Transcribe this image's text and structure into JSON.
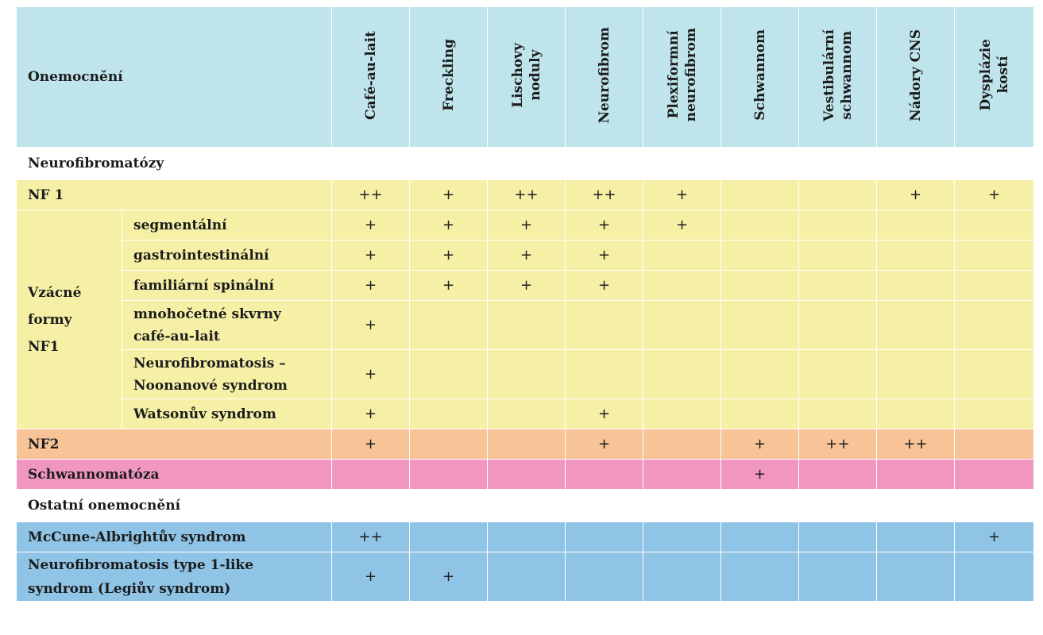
{
  "header": {
    "first": "Onemocnění",
    "columns": [
      [
        "Café-au-lait"
      ],
      [
        "Freckling"
      ],
      [
        "Lischovy",
        "noduly"
      ],
      [
        "Neurofibrom"
      ],
      [
        "Plexiformní",
        "neurofibrom"
      ],
      [
        "Schwannom"
      ],
      [
        "Vestibulární",
        "schwannom"
      ],
      [
        "Nádory CNS"
      ],
      [
        "Dysplázie",
        "kostí"
      ]
    ]
  },
  "sections": {
    "neurofibromatozy": "Neurofibromatózy",
    "ostatni": "Ostatní onemocnění"
  },
  "group_label": [
    "Vzácné",
    "formy",
    "NF1"
  ],
  "rows": [
    {
      "label": "NF 1",
      "color": "#f5f0a6",
      "marks": [
        "++",
        "+",
        "++",
        "++",
        "+",
        "",
        "",
        "+",
        "+"
      ]
    },
    {
      "label": "segmentální",
      "color": "#f5f0a6",
      "marks": [
        "+",
        "+",
        "+",
        "+",
        "+",
        "",
        "",
        "",
        ""
      ]
    },
    {
      "label": "gastrointestinální",
      "color": "#f5f0a6",
      "marks": [
        "+",
        "+",
        "+",
        "+",
        "",
        "",
        "",
        "",
        ""
      ]
    },
    {
      "label": "familiární spinální",
      "color": "#f5f0a6",
      "marks": [
        "+",
        "+",
        "+",
        "+",
        "",
        "",
        "",
        "",
        ""
      ]
    },
    {
      "label": [
        "mnohočetné skvrny",
        "café-au-lait"
      ],
      "color": "#f5f0a6",
      "marks": [
        "+",
        "",
        "",
        "",
        "",
        "",
        "",
        "",
        ""
      ]
    },
    {
      "label": [
        "Neurofibromatosis –",
        "Noonanové syndrom"
      ],
      "color": "#f5f0a6",
      "marks": [
        "+",
        "",
        "",
        "",
        "",
        "",
        "",
        "",
        ""
      ]
    },
    {
      "label": "Watsonův syndrom",
      "color": "#f5f0a6",
      "marks": [
        "+",
        "",
        "",
        "+",
        "",
        "",
        "",
        "",
        ""
      ]
    },
    {
      "label": "NF2",
      "color": "#f7c397",
      "marks": [
        "+",
        "",
        "",
        "+",
        "",
        "+",
        "++",
        "++",
        ""
      ]
    },
    {
      "label": "Schwannomatóza",
      "color": "#f096c1",
      "marks": [
        "",
        "",
        "",
        "",
        "",
        "+",
        "",
        "",
        ""
      ]
    },
    {
      "label": "McCune-Albrightův syndrom",
      "color": "#8fc4e6",
      "marks": [
        "++",
        "",
        "",
        "",
        "",
        "",
        "",
        "",
        "+"
      ]
    },
    {
      "label": [
        "Neurofibromatosis type 1-like",
        "syndrom (Legiův syndrom)"
      ],
      "color": "#8fc4e6",
      "marks": [
        "+",
        "+",
        "",
        "",
        "",
        "",
        "",
        "",
        ""
      ]
    }
  ]
}
